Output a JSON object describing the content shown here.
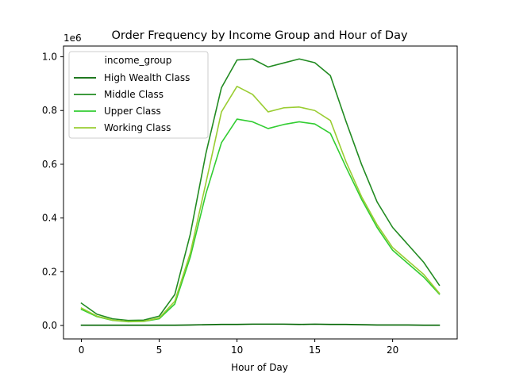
{
  "chart_data": {
    "type": "line",
    "title": "Order Frequency by Income Group and Hour of Day",
    "xlabel": "Hour of Day",
    "ylabel": "",
    "offset_label": "1e6",
    "xlim": [
      -1.15,
      24.15
    ],
    "ylim": [
      -0.05,
      1.04
    ],
    "x_ticks": [
      0,
      5,
      10,
      15,
      20
    ],
    "x_tick_labels": [
      "0",
      "5",
      "10",
      "15",
      "20"
    ],
    "y_ticks": [
      0.0,
      0.2,
      0.4,
      0.6,
      0.8,
      1.0
    ],
    "y_tick_labels": [
      "0.0",
      "0.2",
      "0.4",
      "0.6",
      "0.8",
      "1.0"
    ],
    "grid": false,
    "legend": {
      "title": "income_group",
      "placement": "top-left"
    },
    "x": [
      0,
      1,
      2,
      3,
      4,
      5,
      6,
      7,
      8,
      9,
      10,
      11,
      12,
      13,
      14,
      15,
      16,
      17,
      18,
      19,
      20,
      21,
      22,
      23
    ],
    "series": [
      {
        "name": "High Wealth Class",
        "color": "#006400",
        "values": [
          0.001,
          0.001,
          0.001,
          0.001,
          0.001,
          0.001,
          0.001,
          0.002,
          0.003,
          0.004,
          0.004,
          0.005,
          0.005,
          0.005,
          0.004,
          0.005,
          0.004,
          0.004,
          0.003,
          0.002,
          0.002,
          0.002,
          0.001,
          0.001
        ]
      },
      {
        "name": "Middle Class",
        "color": "#228B22",
        "values": [
          0.083,
          0.042,
          0.025,
          0.019,
          0.02,
          0.035,
          0.115,
          0.34,
          0.64,
          0.885,
          0.988,
          0.992,
          0.962,
          0.977,
          0.992,
          0.978,
          0.93,
          0.76,
          0.6,
          0.46,
          0.365,
          0.3,
          0.235,
          0.15
        ]
      },
      {
        "name": "Upper Class",
        "color": "#32CD32",
        "values": [
          0.06,
          0.033,
          0.019,
          0.014,
          0.015,
          0.025,
          0.08,
          0.255,
          0.49,
          0.68,
          0.768,
          0.758,
          0.733,
          0.748,
          0.758,
          0.75,
          0.715,
          0.59,
          0.47,
          0.365,
          0.28,
          0.23,
          0.18,
          0.117
        ]
      },
      {
        "name": "Working Class",
        "color": "#9ACD32",
        "values": [
          0.065,
          0.035,
          0.02,
          0.015,
          0.016,
          0.028,
          0.09,
          0.27,
          0.53,
          0.795,
          0.89,
          0.86,
          0.795,
          0.81,
          0.813,
          0.8,
          0.763,
          0.61,
          0.48,
          0.375,
          0.29,
          0.24,
          0.19,
          0.12
        ]
      }
    ]
  }
}
